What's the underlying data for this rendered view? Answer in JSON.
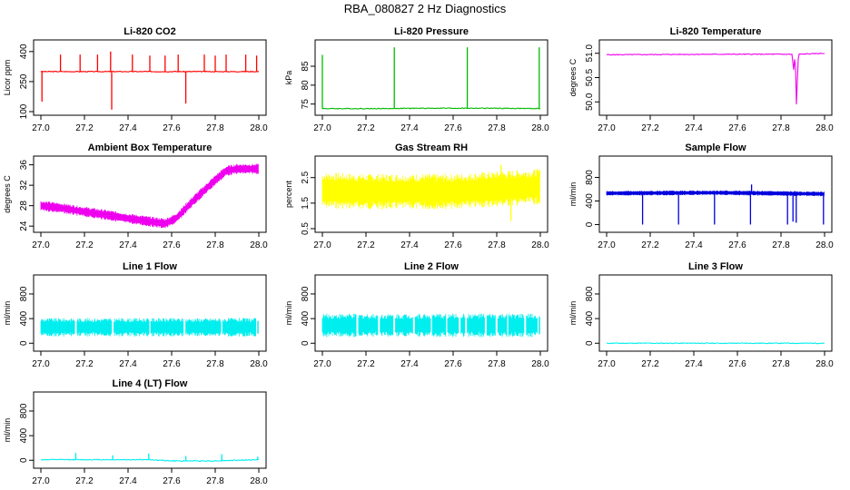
{
  "figure_title": "RBA_080827  2 Hz Diagnostics",
  "chart_data": [
    {
      "type": "line",
      "title": "Li-820 CO2",
      "ylabel": "Licor ppm",
      "color": "#ff0000",
      "xlim": [
        27.0,
        28.0
      ],
      "ylim": [
        100,
        440
      ],
      "xticks": [
        27.0,
        27.2,
        27.4,
        27.6,
        27.8,
        28.0
      ],
      "xtick_labels": [
        "27.0",
        "27.2",
        "27.4",
        "27.6",
        "27.8",
        "28.0"
      ],
      "yticks": [
        100,
        250,
        400
      ],
      "ytick_labels": [
        "100",
        "250",
        "400"
      ],
      "series": [
        {
          "name": "CO2",
          "x": [
            27.0,
            27.25,
            27.5,
            27.75,
            28.0
          ],
          "y": [
            300,
            300,
            300,
            300,
            300
          ]
        }
      ],
      "spikes": [
        {
          "x": 27.005,
          "y": 150
        },
        {
          "x": 27.09,
          "y": 385
        },
        {
          "x": 27.18,
          "y": 385
        },
        {
          "x": 27.26,
          "y": 385
        },
        {
          "x": 27.32,
          "y": 400
        },
        {
          "x": 27.325,
          "y": 110
        },
        {
          "x": 27.42,
          "y": 385
        },
        {
          "x": 27.5,
          "y": 380
        },
        {
          "x": 27.57,
          "y": 380
        },
        {
          "x": 27.63,
          "y": 385
        },
        {
          "x": 27.665,
          "y": 140
        },
        {
          "x": 27.75,
          "y": 385
        },
        {
          "x": 27.8,
          "y": 380
        },
        {
          "x": 27.85,
          "y": 385
        },
        {
          "x": 27.94,
          "y": 385
        },
        {
          "x": 27.99,
          "y": 380
        }
      ]
    },
    {
      "type": "line",
      "title": "Li-820 Pressure",
      "ylabel": "kPa",
      "color": "#00bb00",
      "xlim": [
        27.0,
        28.0
      ],
      "ylim": [
        73,
        91
      ],
      "xticks": [
        27.0,
        27.2,
        27.4,
        27.6,
        27.8,
        28.0
      ],
      "xtick_labels": [
        "27.0",
        "27.2",
        "27.4",
        "27.6",
        "27.8",
        "28.0"
      ],
      "yticks": [
        75,
        80,
        85
      ],
      "ytick_labels": [
        "75",
        "80",
        "85"
      ],
      "series": [
        {
          "name": "Pressure",
          "x": [
            27.0,
            27.25,
            27.5,
            27.75,
            28.0
          ],
          "y": [
            73.8,
            73.8,
            73.9,
            73.9,
            73.8
          ]
        }
      ],
      "spikes": [
        {
          "x": 27.0,
          "y": 88
        },
        {
          "x": 27.33,
          "y": 90
        },
        {
          "x": 27.665,
          "y": 90
        },
        {
          "x": 27.995,
          "y": 90
        }
      ]
    },
    {
      "type": "line",
      "title": "Li-820 Temperature",
      "ylabel": "degrees C",
      "color": "#ee00ee",
      "xlim": [
        27.0,
        28.0
      ],
      "ylim": [
        49.8,
        51.2
      ],
      "xticks": [
        27.0,
        27.2,
        27.4,
        27.6,
        27.8,
        28.0
      ],
      "xtick_labels": [
        "27.0",
        "27.2",
        "27.4",
        "27.6",
        "27.8",
        "28.0"
      ],
      "yticks": [
        50.0,
        50.5,
        51.0
      ],
      "ytick_labels": [
        "50.0",
        "50.5",
        "51.0"
      ],
      "series": [
        {
          "name": "Temperature",
          "x": [
            27.0,
            27.5,
            27.85,
            27.86,
            27.865,
            27.87,
            27.88,
            28.0
          ],
          "y": [
            50.97,
            50.98,
            50.98,
            50.6,
            51.15,
            49.85,
            50.98,
            51.0
          ]
        }
      ],
      "spikes": []
    },
    {
      "type": "area",
      "title": "Ambient Box Temperature",
      "ylabel": "degrees C",
      "color": "#ee00ee",
      "xlim": [
        27.0,
        28.0
      ],
      "ylim": [
        23.5,
        37
      ],
      "xticks": [
        27.0,
        27.2,
        27.4,
        27.6,
        27.8,
        28.0
      ],
      "xtick_labels": [
        "27.0",
        "27.2",
        "27.4",
        "27.6",
        "27.8",
        "28.0"
      ],
      "yticks": [
        24,
        28,
        32,
        36
      ],
      "ytick_labels": [
        "24",
        "28",
        "32",
        "36"
      ],
      "series": [
        {
          "name": "Ambient",
          "x": [
            27.0,
            27.1,
            27.2,
            27.3,
            27.4,
            27.5,
            27.57,
            27.62,
            27.7,
            27.8,
            27.85,
            27.9,
            28.0
          ],
          "y": [
            28.0,
            27.5,
            26.8,
            26.2,
            25.5,
            24.9,
            24.5,
            25.5,
            29.0,
            33.0,
            34.8,
            35.2,
            35.2
          ]
        }
      ],
      "band": 1.0,
      "spikes": []
    },
    {
      "type": "area",
      "title": "Gas Stream RH",
      "ylabel": "percent",
      "color": "#ffff00",
      "xlim": [
        27.0,
        28.0
      ],
      "ylim": [
        0.5,
        3.2
      ],
      "xticks": [
        27.0,
        27.2,
        27.4,
        27.6,
        27.8,
        28.0
      ],
      "xtick_labels": [
        "27.0",
        "27.2",
        "27.4",
        "27.6",
        "27.8",
        "28.0"
      ],
      "yticks": [
        0.5,
        1.5,
        2.5
      ],
      "ytick_labels": [
        "0.5",
        "1.5",
        "2.5"
      ],
      "series": [
        {
          "name": "RH",
          "x": [
            27.0,
            27.2,
            27.4,
            27.6,
            27.8,
            28.0
          ],
          "y": [
            2.0,
            1.95,
            1.95,
            1.95,
            2.05,
            2.15
          ]
        }
      ],
      "band": 0.7,
      "spikes": [
        {
          "x": 27.82,
          "y": 3.0
        },
        {
          "x": 27.865,
          "y": 0.8
        }
      ]
    },
    {
      "type": "area",
      "title": "Sample Flow",
      "ylabel": "ml/min",
      "color": "#0000dd",
      "xlim": [
        27.0,
        28.0
      ],
      "ylim": [
        -70,
        1100
      ],
      "xticks": [
        27.0,
        27.2,
        27.4,
        27.6,
        27.8,
        28.0
      ],
      "xtick_labels": [
        "27.0",
        "27.2",
        "27.4",
        "27.6",
        "27.8",
        "28.0"
      ],
      "yticks": [
        0,
        400,
        800
      ],
      "ytick_labels": [
        "0",
        "400",
        "800"
      ],
      "series": [
        {
          "name": "Sample",
          "x": [
            27.0,
            27.5,
            28.0
          ],
          "y": [
            530,
            540,
            520
          ]
        }
      ],
      "band": 40,
      "spikes": [
        {
          "x": 27.165,
          "y": 0
        },
        {
          "x": 27.33,
          "y": 0
        },
        {
          "x": 27.495,
          "y": 0
        },
        {
          "x": 27.66,
          "y": 0
        },
        {
          "x": 27.665,
          "y": 680
        },
        {
          "x": 27.83,
          "y": 0
        },
        {
          "x": 27.855,
          "y": 50
        },
        {
          "x": 27.87,
          "y": 30
        },
        {
          "x": 27.995,
          "y": 0
        }
      ]
    },
    {
      "type": "area",
      "title": "Line 1 Flow",
      "ylabel": "ml/min",
      "color": "#00eeee",
      "xlim": [
        27.0,
        28.0
      ],
      "ylim": [
        -70,
        1050
      ],
      "xticks": [
        27.0,
        27.2,
        27.4,
        27.6,
        27.8,
        28.0
      ],
      "xtick_labels": [
        "27.0",
        "27.2",
        "27.4",
        "27.6",
        "27.8",
        "28.0"
      ],
      "yticks": [
        0,
        400,
        800
      ],
      "ytick_labels": [
        "0",
        "400",
        "800"
      ],
      "series": [
        {
          "name": "Line 1",
          "x": [
            27.0,
            28.0
          ],
          "y": [
            260,
            260
          ]
        }
      ],
      "band": 150,
      "gaps": [
        27.16,
        27.33,
        27.5,
        27.66,
        27.83,
        27.99
      ],
      "spikes": []
    },
    {
      "type": "area",
      "title": "Line 2 Flow",
      "ylabel": "ml/min",
      "color": "#00eeee",
      "xlim": [
        27.0,
        28.0
      ],
      "ylim": [
        -70,
        1050
      ],
      "xticks": [
        27.0,
        27.2,
        27.4,
        27.6,
        27.8,
        28.0
      ],
      "xtick_labels": [
        "27.0",
        "27.2",
        "27.4",
        "27.6",
        "27.8",
        "28.0"
      ],
      "yticks": [
        0,
        400,
        800
      ],
      "ytick_labels": [
        "0",
        "400",
        "800"
      ],
      "series": [
        {
          "name": "Line 2",
          "x": [
            27.0,
            28.0
          ],
          "y": [
            290,
            290
          ]
        }
      ],
      "band": 190,
      "gaps": [
        27.16,
        27.26,
        27.33,
        27.42,
        27.5,
        27.57,
        27.63,
        27.66,
        27.75,
        27.8,
        27.85,
        27.93,
        27.99
      ],
      "spikes": []
    },
    {
      "type": "line",
      "title": "Line 3 Flow",
      "ylabel": "ml/min",
      "color": "#00eeee",
      "xlim": [
        27.0,
        28.0
      ],
      "ylim": [
        -70,
        1050
      ],
      "xticks": [
        27.0,
        27.2,
        27.4,
        27.6,
        27.8,
        28.0
      ],
      "xtick_labels": [
        "27.0",
        "27.2",
        "27.4",
        "27.6",
        "27.8",
        "28.0"
      ],
      "yticks": [
        0,
        400,
        800
      ],
      "ytick_labels": [
        "0",
        "400",
        "800"
      ],
      "series": [
        {
          "name": "Line 3",
          "x": [
            27.0,
            28.0
          ],
          "y": [
            0,
            0
          ]
        }
      ],
      "spikes": []
    },
    {
      "type": "line",
      "title": "Line 4 (LT) Flow",
      "ylabel": "ml/min",
      "color": "#00eeee",
      "xlim": [
        27.0,
        28.0
      ],
      "ylim": [
        -70,
        1050
      ],
      "xticks": [
        27.0,
        27.2,
        27.4,
        27.6,
        27.8,
        28.0
      ],
      "xtick_labels": [
        "27.0",
        "27.2",
        "27.4",
        "27.6",
        "27.8",
        "28.0"
      ],
      "yticks": [
        0,
        400,
        800
      ],
      "ytick_labels": [
        "0",
        "400",
        "800"
      ],
      "series": [
        {
          "name": "Line 4",
          "x": [
            27.0,
            27.5,
            27.6,
            27.8,
            28.0
          ],
          "y": [
            10,
            10,
            -10,
            -10,
            10
          ]
        }
      ],
      "spikes": [
        {
          "x": 27.16,
          "y": 120
        },
        {
          "x": 27.33,
          "y": 80
        },
        {
          "x": 27.495,
          "y": 110
        },
        {
          "x": 27.665,
          "y": 70
        },
        {
          "x": 27.83,
          "y": 100
        },
        {
          "x": 27.995,
          "y": 60
        }
      ]
    }
  ]
}
